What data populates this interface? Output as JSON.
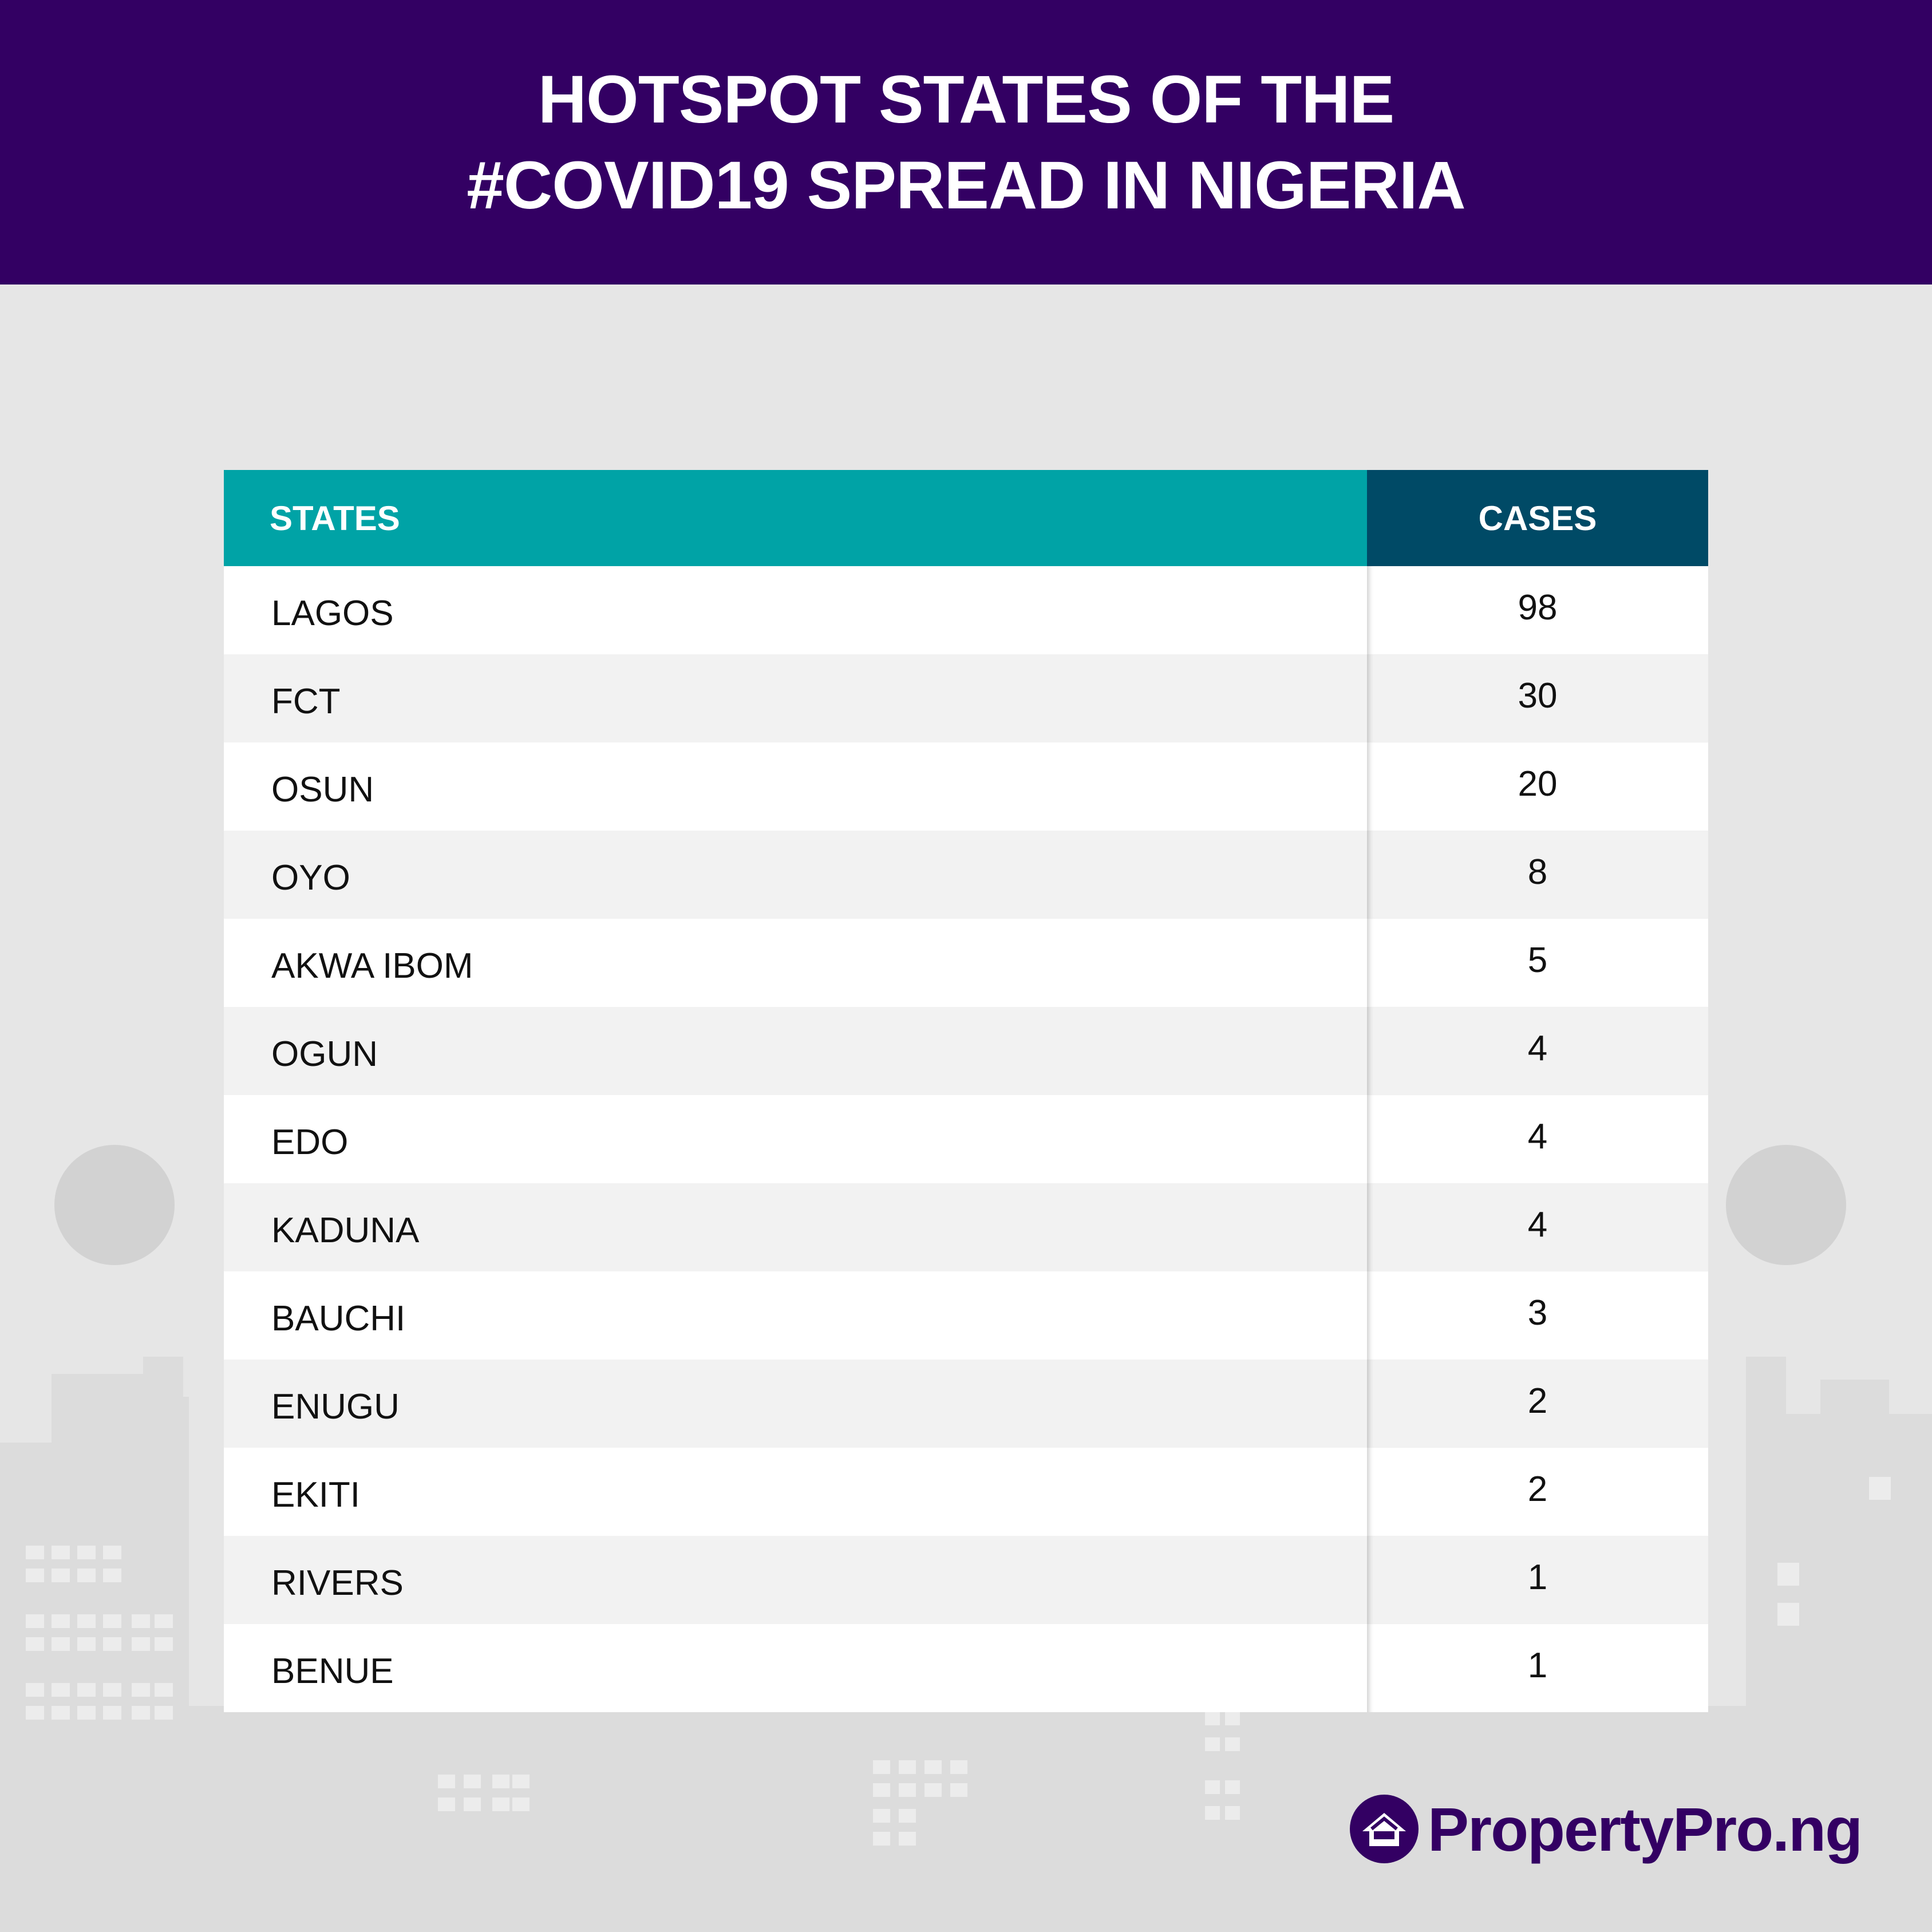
{
  "header": {
    "title_line1": "HOTSPOT STATES OF THE",
    "title_line2": "#COVID19 SPREAD IN NIGERIA"
  },
  "chart_data": {
    "type": "table",
    "title": "HOTSPOT STATES OF THE #COVID19 SPREAD IN NIGERIA",
    "columns": [
      "STATES",
      "CASES"
    ],
    "rows": [
      {
        "state": "LAGOS",
        "cases": "98"
      },
      {
        "state": "FCT",
        "cases": "30"
      },
      {
        "state": "OSUN",
        "cases": "20"
      },
      {
        "state": "OYO",
        "cases": "8"
      },
      {
        "state": "AKWA IBOM",
        "cases": "5"
      },
      {
        "state": "OGUN",
        "cases": "4"
      },
      {
        "state": "EDO",
        "cases": "4"
      },
      {
        "state": "KADUNA",
        "cases": "4"
      },
      {
        "state": "BAUCHI",
        "cases": "3"
      },
      {
        "state": "ENUGU",
        "cases": "2"
      },
      {
        "state": "EKITI",
        "cases": "2"
      },
      {
        "state": "RIVERS",
        "cases": "1"
      },
      {
        "state": "BENUE",
        "cases": "1"
      }
    ]
  },
  "logo": {
    "text": "PropertyPro.ng",
    "color": "#330063"
  },
  "colors": {
    "header_band": "#330063",
    "states_header": "#00a3a6",
    "cases_header": "#004a66",
    "background": "#e6e6e6"
  }
}
